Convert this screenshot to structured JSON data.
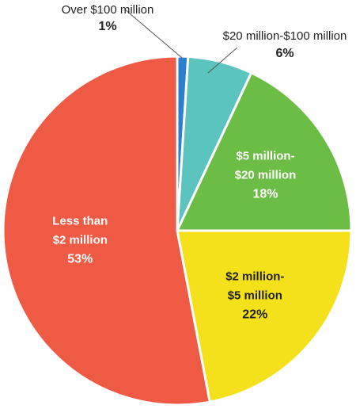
{
  "chart_data": {
    "type": "pie",
    "title": "",
    "start_angle_deg": 0,
    "direction": "clockwise",
    "slices": [
      {
        "label_lines": [
          "Over $100 million"
        ],
        "percent_text": "1%",
        "value": 1,
        "color": "#2a7fd0",
        "label_color": "#222222",
        "label_position": "outside"
      },
      {
        "label_lines": [
          "$20 million-$100 million"
        ],
        "percent_text": "6%",
        "value": 6,
        "color": "#5bc4bf",
        "label_color": "#222222",
        "label_position": "outside"
      },
      {
        "label_lines": [
          "$5 million-",
          "$20 million"
        ],
        "percent_text": "18%",
        "value": 18,
        "color": "#6cbd45",
        "label_color": "#ffffff",
        "label_position": "inside"
      },
      {
        "label_lines": [
          "$2 million-",
          "$5 million"
        ],
        "percent_text": "22%",
        "value": 22,
        "color": "#f4e11b",
        "label_color": "#222222",
        "label_position": "inside"
      },
      {
        "label_lines": [
          "Less than",
          "$2 million"
        ],
        "percent_text": "53%",
        "value": 53,
        "color": "#ef5a45",
        "label_color": "#ffffff",
        "label_position": "inside"
      }
    ]
  }
}
